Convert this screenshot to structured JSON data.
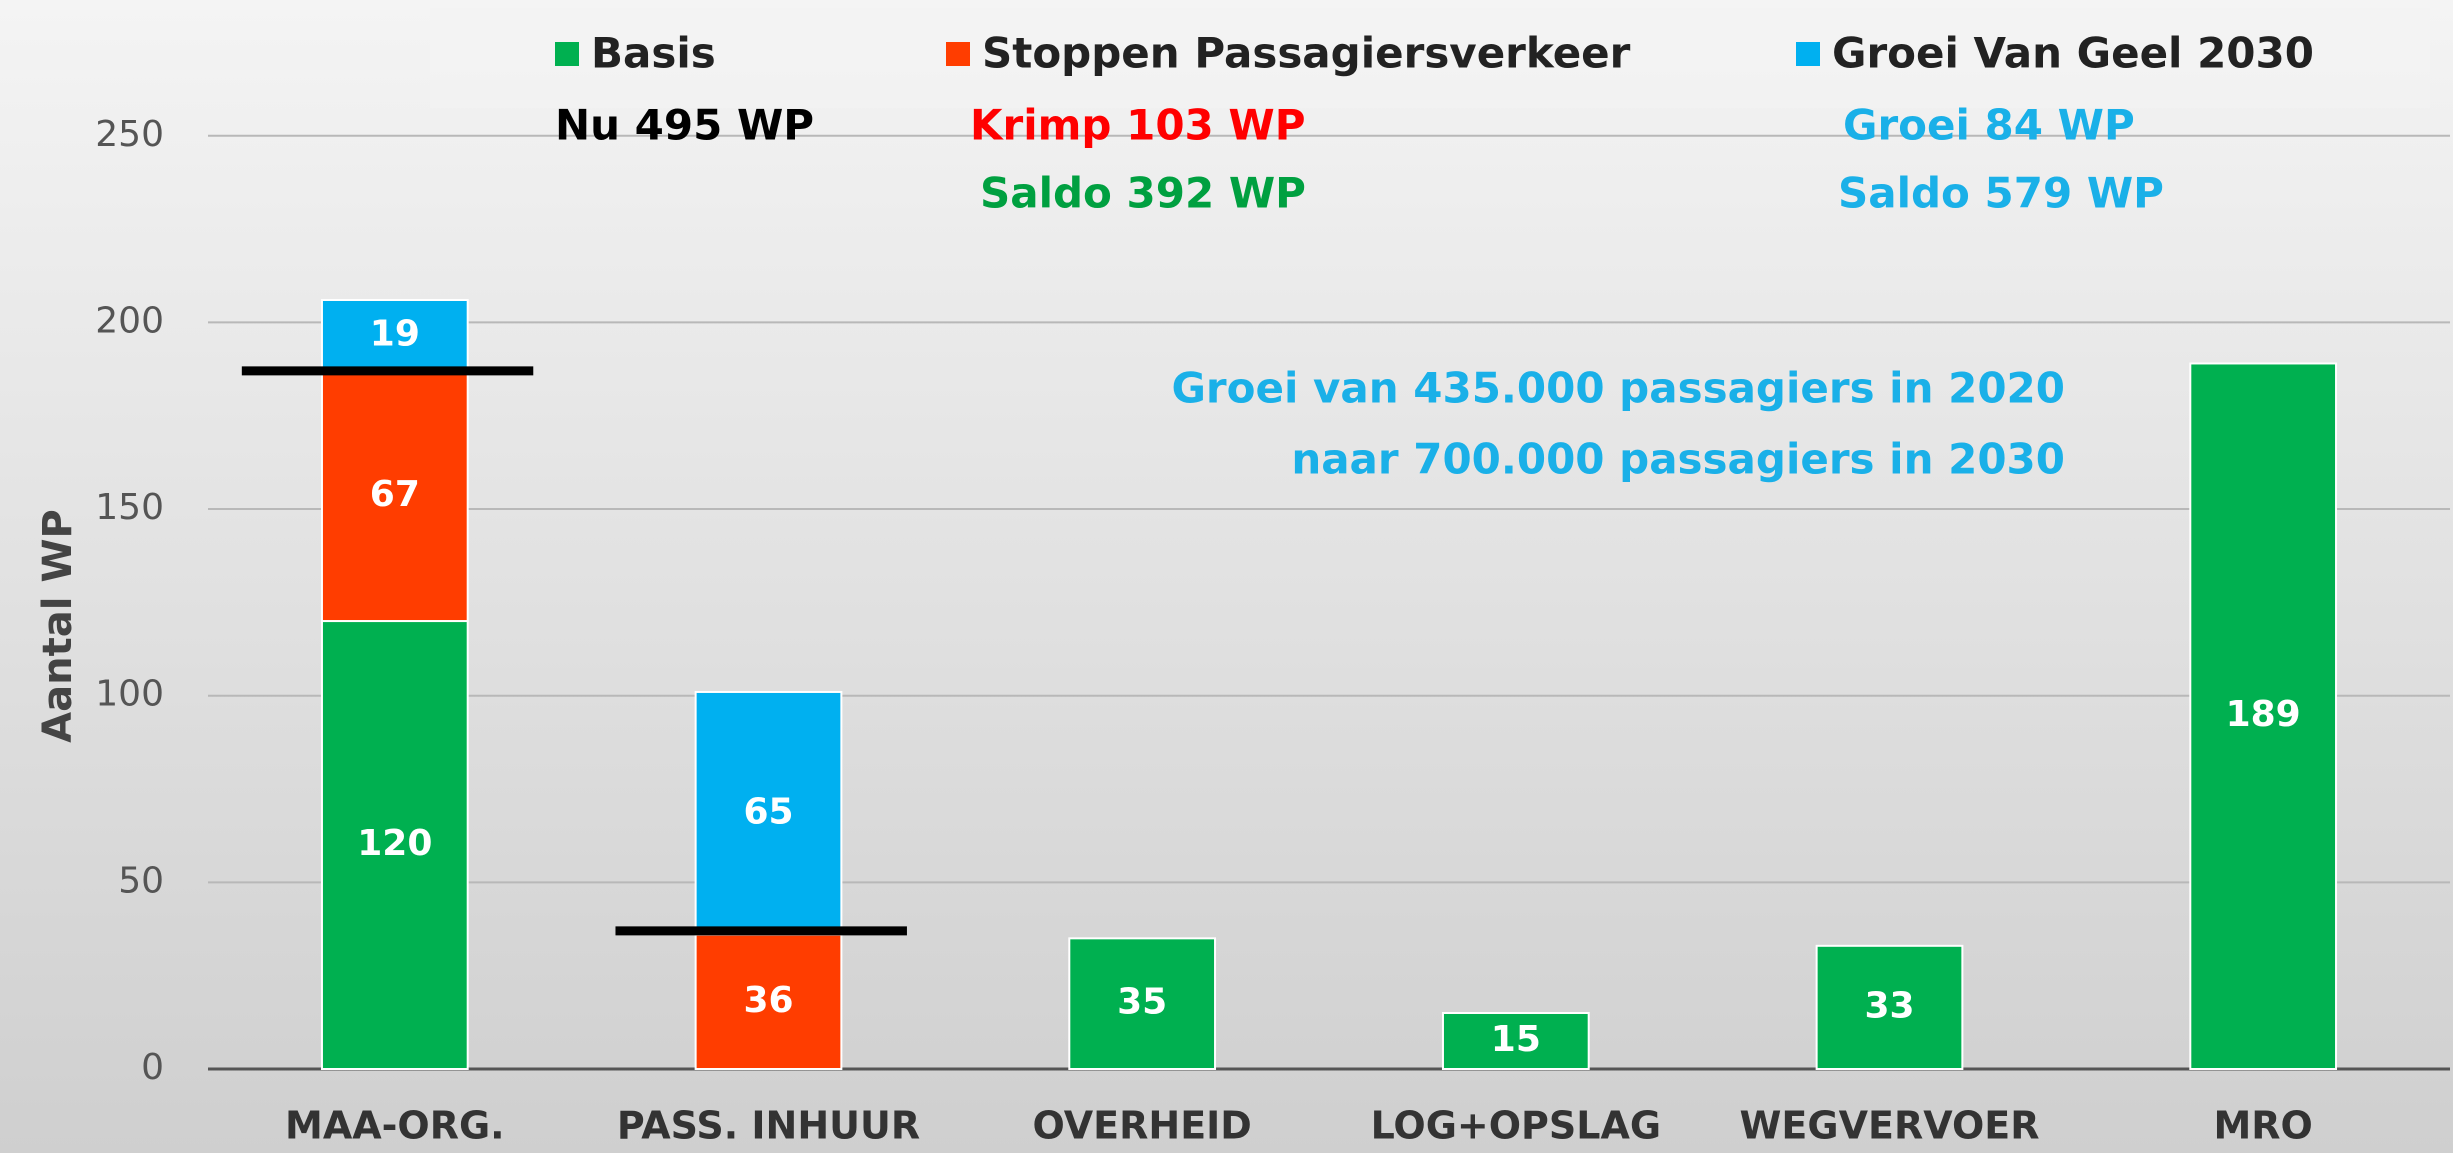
{
  "chart_data": {
    "type": "stacked_bar",
    "y_label": "Aantal WP",
    "categories": [
      "MAA-ORG.",
      "PASS. INHUUR",
      "OVERHEID",
      "LOG+OPSLAG",
      "WEGVERVOER",
      "MRO"
    ],
    "series": [
      {
        "name": "Basis",
        "color": "#00b050",
        "values": [
          120,
          null,
          35,
          15,
          33,
          189
        ]
      },
      {
        "name": "Stoppen Passagiersverkeer",
        "color": "#ff3d00",
        "values": [
          67,
          36,
          null,
          null,
          null,
          null
        ]
      },
      {
        "name": "Groei Van Geel 2030",
        "color": "#00b0f0",
        "values": [
          19,
          65,
          null,
          null,
          null,
          null
        ]
      }
    ],
    "level_lines": [
      187,
      37,
      null,
      null,
      null,
      null
    ],
    "annotations": [
      {
        "text": "Nu 495 WP",
        "color": "#000000"
      },
      {
        "text": "Krimp 103 WP",
        "color": "#ff0000"
      },
      {
        "text": "Saldo 392 WP",
        "color": "#00a040"
      },
      {
        "text": "Groei 84 WP",
        "color": "#1ab0e8"
      },
      {
        "text": "Saldo 579 WP",
        "color": "#1ab0e8"
      },
      {
        "text": "Groei van 435.000 passagiers in 2020",
        "color": "#1ab0e8"
      },
      {
        "text": "naar 700.000 passagiers in 2030",
        "color": "#1ab0e8"
      }
    ],
    "ylim": [
      0,
      280
    ],
    "yticks": [
      0,
      50,
      100,
      150,
      200,
      250
    ],
    "grid": true
  }
}
